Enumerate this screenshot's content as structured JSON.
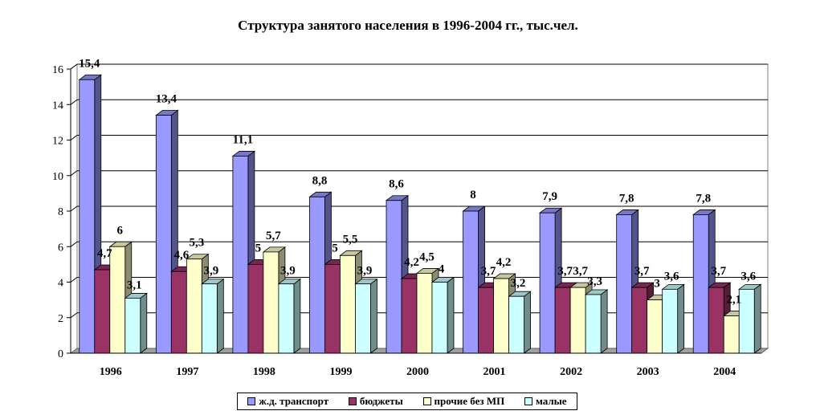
{
  "chart_data": {
    "type": "bar",
    "title": "Структура занятого населения в 1996-2004 гг., тыс.чел.",
    "xlabel": "",
    "ylabel": "",
    "ylim": [
      0,
      16
    ],
    "yticks": [
      0,
      2,
      4,
      6,
      8,
      10,
      12,
      14,
      16
    ],
    "grid": true,
    "legend_position": "bottom",
    "categories": [
      "1996",
      "1997",
      "1998",
      "1999",
      "2000",
      "2001",
      "2002",
      "2003",
      "2004"
    ],
    "series": [
      {
        "name": "ж.д. транспорт",
        "color": "#9999ff",
        "values": [
          15.4,
          13.4,
          11.1,
          8.8,
          8.6,
          8,
          7.9,
          7.8,
          7.8
        ],
        "labels": [
          "15,4",
          "13,4",
          "11,1",
          "8,8",
          "8,6",
          "8",
          "7,9",
          "7,8",
          "7,8"
        ]
      },
      {
        "name": "бюджеты",
        "color": "#993366",
        "values": [
          4.7,
          4.6,
          5,
          5,
          4.2,
          3.7,
          3.7,
          3.7,
          3.7
        ],
        "labels": [
          "4,7",
          "4,6",
          "5",
          "5",
          "4,2",
          "3,7",
          "3,7",
          "3,7",
          "3,7"
        ]
      },
      {
        "name": "прочие без МП",
        "color": "#ffffcc",
        "values": [
          6,
          5.3,
          5.7,
          5.5,
          4.5,
          4.2,
          3.7,
          3,
          2.1
        ],
        "labels": [
          "6",
          "5,3",
          "5,7",
          "5,5",
          "4,5",
          "4,2",
          "3,7",
          "3",
          "2,1"
        ]
      },
      {
        "name": "малые",
        "color": "#ccffff",
        "values": [
          3.1,
          3.9,
          3.9,
          3.9,
          4,
          3.2,
          3.3,
          3.6,
          3.6
        ],
        "labels": [
          "3,1",
          "3,9",
          "3,9",
          "3,9",
          "4",
          "3,2",
          "3,3",
          "3,6",
          "3,6"
        ]
      }
    ]
  }
}
